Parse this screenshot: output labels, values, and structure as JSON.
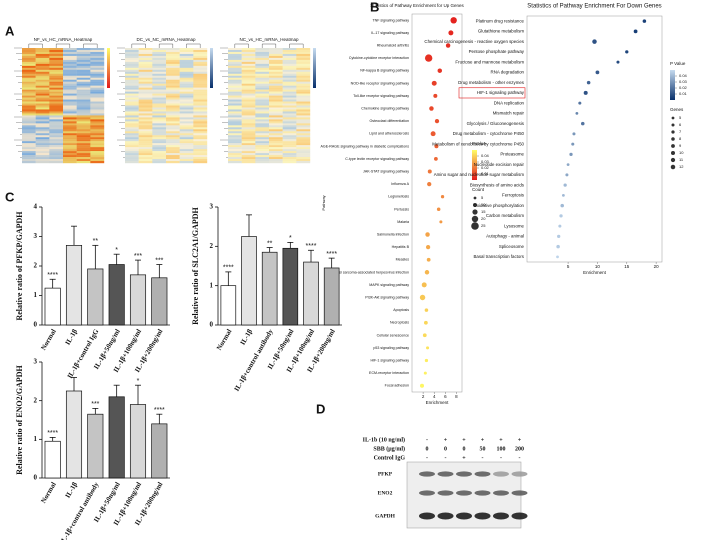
{
  "panel_labels": [
    "A",
    "B",
    "C",
    "D"
  ],
  "heatmaps": [
    {
      "title": "NF_vs_HC_mRNA_Heatmap"
    },
    {
      "title": "DC_vs_NC_mRNA_Heatmap"
    },
    {
      "title": "NC_vs_HC_mRNA_Heatmap"
    }
  ],
  "chart_data": [
    {
      "type": "dot",
      "title": "Statistics of Pathway Enrichment for Up Genes",
      "xlabel": "Enrichment",
      "ylabel": "Pathway",
      "categories": [
        "TNF signaling pathway",
        "IL-17 signaling pathway",
        "Rheumatoid arthritis",
        "Cytokine-cytokine receptor interaction",
        "NF-kappa B signaling pathway",
        "NOD-like receptor signaling pathway",
        "Toll-like receptor signaling pathway",
        "Chemokine signaling pathway",
        "Osteoclast differentiation",
        "Lipid and atherosclerosis",
        "AGE-RAGE signaling pathway in diabetic complications",
        "C-type lectin receptor signaling pathway",
        "JAK-STAT signaling pathway",
        "Influenza A",
        "Legionellosis",
        "Pertussis",
        "Malaria",
        "Salmonella infection",
        "Hepatitis B",
        "Measles",
        "Kaposi sarcoma-associated herpesvirus infection",
        "MAPK signaling pathway",
        "PI3K-Akt signaling pathway",
        "Apoptosis",
        "Necroptosis",
        "Cellular senescence",
        "p53 signaling pathway",
        "HIF-1 signaling pathway",
        "ECM-receptor interaction",
        "Focal adhesion"
      ],
      "values": [
        7.5,
        7,
        6.5,
        3,
        5,
        4,
        4.2,
        3.5,
        4.5,
        3.8,
        4.4,
        4.3,
        3.2,
        3.1,
        5.5,
        4.8,
        5.2,
        2.8,
        2.9,
        3,
        2.7,
        2.2,
        1.9,
        2.6,
        2.5,
        2.3,
        2.8,
        2.6,
        2.4,
        1.8
      ],
      "pvalues": [
        0.002,
        0.003,
        0.004,
        0.005,
        0.006,
        0.008,
        0.01,
        0.01,
        0.012,
        0.014,
        0.015,
        0.017,
        0.02,
        0.022,
        0.024,
        0.026,
        0.028,
        0.03,
        0.031,
        0.032,
        0.034,
        0.036,
        0.038,
        0.04,
        0.041,
        0.042,
        0.044,
        0.046,
        0.047,
        0.048
      ],
      "genes": [
        20,
        14,
        12,
        24,
        12,
        14,
        10,
        12,
        11,
        14,
        10,
        9,
        10,
        11,
        7,
        8,
        6,
        12,
        11,
        9,
        12,
        14,
        16,
        8,
        9,
        9,
        6,
        7,
        6,
        10
      ],
      "xlim": [
        0,
        9
      ],
      "xticks": [
        2,
        4,
        6,
        8
      ],
      "colors": [
        "#e31a1c",
        "#ffff66"
      ],
      "p_legend_title": "Pvalue",
      "plim": [
        0,
        0.05
      ],
      "p_ticks": [
        0.01,
        0.02,
        0.03,
        0.04
      ],
      "size_legend_title": "Count",
      "size_ticks": [
        5,
        10,
        15,
        20,
        25
      ]
    },
    {
      "type": "dot",
      "title": "Statistics of Pathway Enrichment For Down Genes",
      "xlabel": "Enrichment",
      "categories": [
        "Platinum drug resistance",
        "Glutathione metabolism",
        "Chemical carcinogenesis - reactive oxygen species",
        "Pentose phosphate pathway",
        "Fructose and mannose metabolism",
        "RNA degradation",
        "Drug metabolism - other enzymes",
        "HIF-1 signaling pathway",
        "DNA replication",
        "Mismatch repair",
        "Glycolysis / Gluconeogenesis",
        "Drug metabolism - cytochrome P450",
        "Metabolism of xenobiotics by cytochrome P450",
        "Proteasome",
        "Nucleotide excision repair",
        "Amino sugar and nucleotide sugar metabolism",
        "Biosynthesis of amino acids",
        "Ferroptosis",
        "Oxidative phosphorylation",
        "Carbon metabolism",
        "Lysosome",
        "Autophagy - animal",
        "Spliceosome",
        "Basal transcription factors"
      ],
      "values": [
        18,
        16.5,
        9.5,
        15,
        13.5,
        10,
        8.5,
        8,
        7,
        6.5,
        7.5,
        6,
        5.8,
        5.5,
        5,
        4.8,
        4.5,
        4.2,
        4,
        3.8,
        3.6,
        3.4,
        3.3,
        3.2
      ],
      "pvalues": [
        0.005,
        0.004,
        0.01,
        0.006,
        0.008,
        0.012,
        0.015,
        0.01,
        0.02,
        0.025,
        0.02,
        0.03,
        0.03,
        0.03,
        0.035,
        0.035,
        0.04,
        0.04,
        0.04,
        0.045,
        0.045,
        0.045,
        0.045,
        0.048
      ],
      "genes": [
        8,
        9,
        12,
        7,
        6,
        9,
        8,
        10,
        6,
        5,
        8,
        6,
        6,
        7,
        5,
        6,
        7,
        5,
        8,
        7,
        6,
        7,
        8,
        5
      ],
      "xlim": [
        -2,
        21
      ],
      "xticks": [
        5,
        10,
        15,
        20
      ],
      "colors": [
        "#08306b",
        "#c6dbef"
      ],
      "highlight": 7,
      "p_legend_title": "P Value",
      "plim": [
        0,
        0.05
      ],
      "p_ticks": [
        0.04,
        0.03,
        0.02,
        0.01
      ],
      "size_legend_title": "Genes",
      "size_ticks": [
        5,
        6,
        7,
        8,
        9,
        10,
        11,
        12
      ]
    },
    {
      "type": "bar",
      "ylabel": "Relative ratio of PFKP/GAPDH",
      "categories": [
        "Normal",
        "IL-1β",
        "IL-1β+control IgG",
        "IL-1β+50ng/ml",
        "IL-1β+100ng/ml",
        "IL-1β+200ng/ml"
      ],
      "values": [
        1.25,
        2.7,
        1.9,
        2.05,
        1.7,
        1.6
      ],
      "errors": [
        0.3,
        0.65,
        0.8,
        0.35,
        0.5,
        0.45
      ],
      "annotations": [
        "****",
        null,
        "**",
        "*",
        "***",
        "***"
      ],
      "colors": [
        "#ffffff",
        "#e4e4e4",
        "#c4c4c4",
        "#555555",
        "#d8d8d8",
        "#b0b0b0"
      ],
      "ylim": [
        0,
        4
      ],
      "yticks": [
        0,
        1,
        2,
        3,
        4
      ]
    },
    {
      "type": "bar",
      "ylabel": "Relative ratio of SLC2A1/GAPDH",
      "categories": [
        "Normal",
        "IL-1β",
        "IL-1β+control antibody",
        "IL-1β+50ng/ml",
        "IL-1β+100ng/ml",
        "IL-1β+200ng/ml"
      ],
      "values": [
        1.0,
        2.25,
        1.85,
        1.95,
        1.6,
        1.45
      ],
      "errors": [
        0.35,
        0.55,
        0.12,
        0.15,
        0.3,
        0.25
      ],
      "annotations": [
        "****",
        null,
        "**",
        "*",
        "****",
        "****"
      ],
      "colors": [
        "#ffffff",
        "#e4e4e4",
        "#c4c4c4",
        "#555555",
        "#d8d8d8",
        "#b0b0b0"
      ],
      "ylim": [
        0,
        3
      ],
      "yticks": [
        0,
        1,
        2,
        3
      ]
    },
    {
      "type": "bar",
      "ylabel": "Relative ratio of ENO2/GAPDH",
      "categories": [
        "Normal",
        "IL-1β",
        "IL-1β+control antibody",
        "IL-1β+50ng/ml",
        "IL-1β+100ng/ml",
        "IL-1β+200ng/ml"
      ],
      "values": [
        0.95,
        2.25,
        1.65,
        2.1,
        1.9,
        1.4
      ],
      "errors": [
        0.1,
        0.35,
        0.15,
        0.3,
        0.5,
        0.25
      ],
      "annotations": [
        "****",
        null,
        "***",
        null,
        "*",
        "****"
      ],
      "colors": [
        "#ffffff",
        "#e4e4e4",
        "#c4c4c4",
        "#555555",
        "#d8d8d8",
        "#b0b0b0"
      ],
      "ylim": [
        0,
        3
      ],
      "yticks": [
        0,
        1,
        2,
        3
      ]
    }
  ],
  "blot": {
    "rows": [
      {
        "label": "IL-1b (10 ng/ml)",
        "values": [
          "-",
          "+",
          "+",
          "+",
          "+",
          "+"
        ]
      },
      {
        "label": "SBB (μg/ml)",
        "values": [
          "0",
          "0",
          "0",
          "50",
          "100",
          "200"
        ]
      },
      {
        "label": "Control IgG",
        "values": [
          "-",
          "-",
          "+",
          "-",
          "-",
          "-"
        ]
      }
    ],
    "proteins": [
      "PFKP",
      "ENO2",
      "GAPDH"
    ]
  }
}
